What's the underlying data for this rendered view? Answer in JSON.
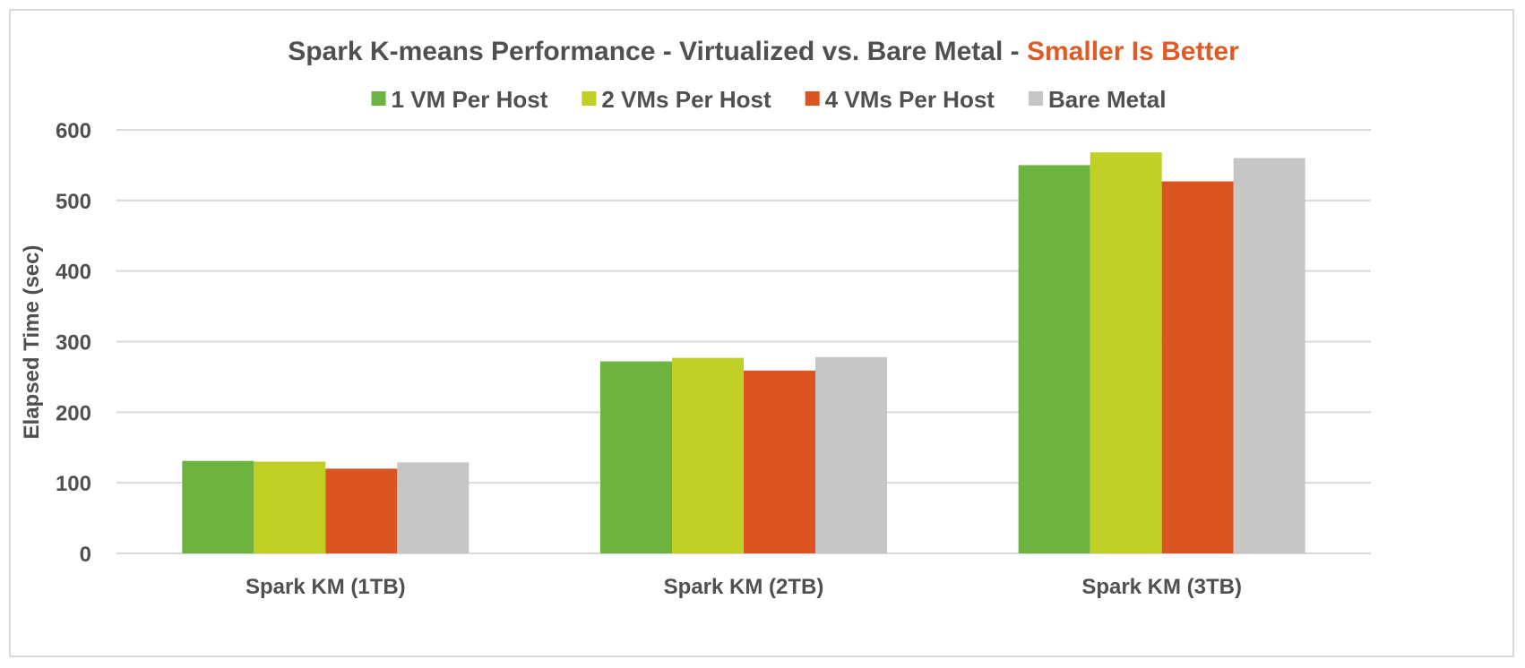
{
  "chart_data": {
    "type": "bar",
    "title": "Spark K-means Performance - Virtualized vs. Bare Metal - ",
    "title_highlight": "Smaller Is Better",
    "title_highlight_color": "#e05a26",
    "ylabel": "Elapsed Time (sec)",
    "xlabel": "",
    "ylim": [
      0,
      600
    ],
    "yticks": [
      0,
      100,
      200,
      300,
      400,
      500,
      600
    ],
    "grid": true,
    "legend_position": "top",
    "categories": [
      "Spark KM (1TB)",
      "Spark KM (2TB)",
      "Spark KM (3TB)"
    ],
    "series": [
      {
        "name": "1 VM Per Host",
        "color": "#6db33f",
        "values": [
          131,
          272,
          550
        ]
      },
      {
        "name": "2 VMs Per Host",
        "color": "#c0cf23",
        "values": [
          130,
          277,
          568
        ]
      },
      {
        "name": "4 VMs Per Host",
        "color": "#dc5520",
        "values": [
          120,
          259,
          527
        ]
      },
      {
        "name": "Bare Metal",
        "color": "#c6c6c6",
        "values": [
          129,
          278,
          560
        ]
      }
    ]
  }
}
